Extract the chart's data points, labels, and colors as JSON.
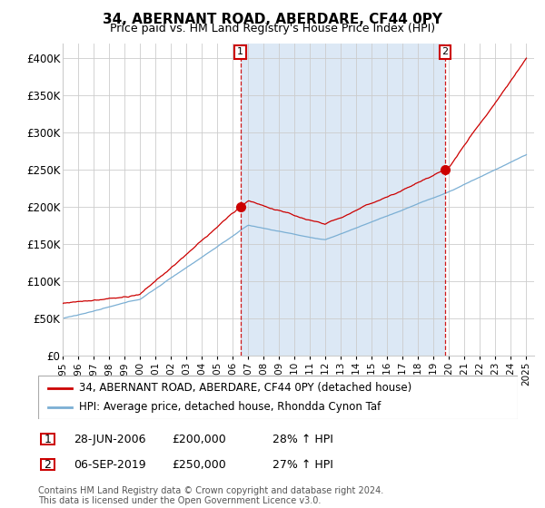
{
  "title": "34, ABERNANT ROAD, ABERDARE, CF44 0PY",
  "subtitle": "Price paid vs. HM Land Registry's House Price Index (HPI)",
  "legend_line1": "34, ABERNANT ROAD, ABERDARE, CF44 0PY (detached house)",
  "legend_line2": "HPI: Average price, detached house, Rhondda Cynon Taf",
  "footer": "Contains HM Land Registry data © Crown copyright and database right 2024.\nThis data is licensed under the Open Government Licence v3.0.",
  "red_color": "#cc0000",
  "blue_color": "#7bafd4",
  "shade_color": "#dce8f5",
  "annotation_color": "#cc0000",
  "sale1_t": 2006.5,
  "sale1_price": 200000,
  "sale2_t": 2019.75,
  "sale2_price": 250000,
  "ylim": [
    0,
    420000
  ],
  "yticks": [
    0,
    50000,
    100000,
    150000,
    200000,
    250000,
    300000,
    350000,
    400000
  ],
  "ytick_labels": [
    "£0",
    "£50K",
    "£100K",
    "£150K",
    "£200K",
    "£250K",
    "£300K",
    "£350K",
    "£400K"
  ],
  "xmin": 1995,
  "xmax": 2025.5,
  "table_rows": [
    {
      "num": "1",
      "date": "28-JUN-2006",
      "price": "£200,000",
      "hpi": "28% ↑ HPI"
    },
    {
      "num": "2",
      "date": "06-SEP-2019",
      "price": "£250,000",
      "hpi": "27% ↑ HPI"
    }
  ]
}
